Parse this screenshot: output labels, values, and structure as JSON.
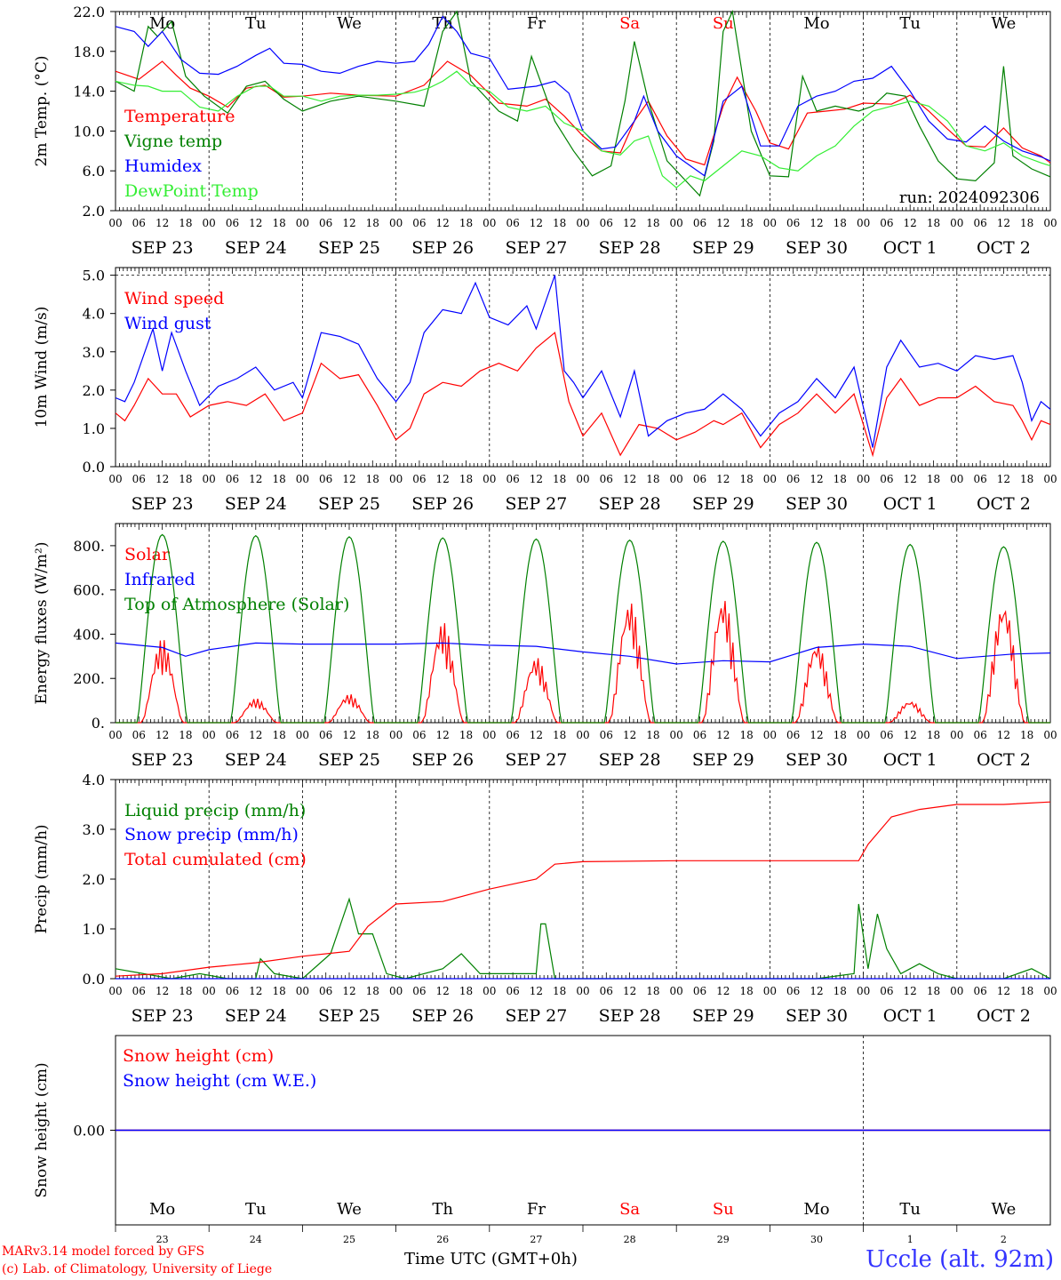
{
  "run_label": "run: 2024092306",
  "footer": {
    "credit_line1": "MARv3.14 model forced by GFS",
    "credit_line2": "(c) Lab. of Climatology, University of Liege",
    "time_label": "Time UTC (GMT+0h)",
    "station": "Uccle (alt. 92m)"
  },
  "colors": {
    "red": "#ff0000",
    "dark_green": "#008000",
    "blue": "#0000ff",
    "light_green": "#33ee33",
    "purple": "#800080",
    "weekend_label": "#ff0000"
  },
  "weekday_labels": [
    "Mo",
    "Tu",
    "We",
    "Th",
    "Fr",
    "Sa",
    "Su",
    "Mo",
    "Tu",
    "We"
  ],
  "weekend_flags": [
    false,
    false,
    false,
    false,
    false,
    true,
    true,
    false,
    false,
    false
  ],
  "date_labels": [
    "SEP 23",
    "SEP 24",
    "SEP 25",
    "SEP 26",
    "SEP 27",
    "SEP 28",
    "SEP 29",
    "SEP 30",
    "OCT  1",
    "OCT  2"
  ],
  "day_numbers": [
    "23",
    "24",
    "25",
    "26",
    "27",
    "28",
    "29",
    "30",
    "1",
    "2"
  ],
  "hour_ticks": [
    "00",
    "06",
    "12",
    "18"
  ],
  "chart_data": [
    {
      "type": "line",
      "id": "temperature",
      "ylabel": "2m Temp. (°C)",
      "ylim": [
        2,
        22
      ],
      "yticks": [
        "2.0",
        "6.0",
        "10.0",
        "14.0",
        "18.0",
        "22.0"
      ],
      "ytick_values": [
        2,
        6,
        10,
        14,
        18,
        22
      ],
      "x_unit": "days since SEP 23 00 UTC",
      "xlim": [
        0,
        10
      ],
      "top_labels": "weekdays",
      "series": [
        {
          "name": "Temperature",
          "color": "#ff0000",
          "x": [
            0,
            0.25,
            0.5,
            0.65,
            0.8,
            1,
            1.2,
            1.4,
            1.6,
            1.8,
            2,
            2.3,
            2.6,
            3,
            3.3,
            3.55,
            3.8,
            4.1,
            4.4,
            4.6,
            4.8,
            5,
            5.2,
            5.4,
            5.55,
            5.7,
            5.9,
            6.1,
            6.3,
            6.5,
            6.65,
            6.85,
            7,
            7.2,
            7.4,
            7.6,
            7.8,
            8,
            8.3,
            8.5,
            8.7,
            8.9,
            9.1,
            9.3,
            9.5,
            9.7,
            9.9,
            10
          ],
          "y": [
            16,
            15.2,
            17,
            15.6,
            14.3,
            13.5,
            12.4,
            14.3,
            14.6,
            13.4,
            13.5,
            13.8,
            13.6,
            13.5,
            14.6,
            17,
            15.6,
            12.8,
            12.5,
            13.2,
            11.5,
            9.5,
            8,
            7.8,
            11,
            13,
            9.5,
            7.2,
            6.6,
            12.5,
            15.4,
            12,
            8.8,
            8.2,
            11.8,
            12,
            12.2,
            12.8,
            12.7,
            13.6,
            12,
            10.2,
            8.5,
            8.4,
            10.3,
            8.3,
            7.5,
            6.8
          ]
        },
        {
          "name": "Vigne temp",
          "color": "#008000",
          "x": [
            0,
            0.2,
            0.35,
            0.45,
            0.6,
            0.75,
            0.95,
            1.2,
            1.4,
            1.6,
            1.8,
            2,
            2.3,
            2.6,
            3,
            3.3,
            3.5,
            3.65,
            3.8,
            4.1,
            4.3,
            4.45,
            4.7,
            4.9,
            5.1,
            5.3,
            5.45,
            5.55,
            5.7,
            5.9,
            6.1,
            6.25,
            6.4,
            6.5,
            6.6,
            6.8,
            7,
            7.2,
            7.35,
            7.5,
            7.7,
            7.95,
            8.1,
            8.25,
            8.45,
            8.6,
            8.8,
            9,
            9.2,
            9.4,
            9.5,
            9.6,
            9.8,
            10
          ],
          "y": [
            15,
            14,
            20.5,
            19.5,
            21,
            15.5,
            13.5,
            11.8,
            14.5,
            15,
            13.2,
            12,
            13,
            13.5,
            13,
            12.5,
            20,
            22,
            15,
            12,
            11,
            17.5,
            11,
            8,
            5.5,
            6.5,
            13,
            19,
            13,
            7,
            5,
            3.5,
            9,
            20,
            22,
            10,
            5.5,
            5.4,
            15.5,
            12,
            12.5,
            12,
            12.5,
            13.8,
            13.5,
            10.5,
            7,
            5.2,
            5,
            6.8,
            16.5,
            7.5,
            6.2,
            5.4
          ]
        },
        {
          "name": "Humidex",
          "color": "#0000ff",
          "x": [
            0,
            0.2,
            0.35,
            0.5,
            0.7,
            0.9,
            1.1,
            1.3,
            1.5,
            1.65,
            1.8,
            2,
            2.2,
            2.4,
            2.6,
            2.8,
            3,
            3.2,
            3.35,
            3.5,
            3.65,
            3.8,
            4,
            4.2,
            4.5,
            4.7,
            4.85,
            5,
            5.2,
            5.35,
            5.55,
            5.65,
            5.8,
            6,
            6.15,
            6.3,
            6.5,
            6.7,
            6.9,
            7.1,
            7.3,
            7.5,
            7.7,
            7.9,
            8.1,
            8.3,
            8.5,
            8.7,
            8.9,
            9.1,
            9.3,
            9.5,
            9.7,
            9.9,
            10
          ],
          "y": [
            20.5,
            20,
            18.5,
            20,
            17.2,
            15.8,
            15.7,
            16.5,
            17.6,
            18.3,
            16.8,
            16.7,
            16,
            15.8,
            16.5,
            17,
            16.8,
            17,
            18.7,
            21.5,
            20,
            17.8,
            17.3,
            14.2,
            14.5,
            15,
            13.8,
            10,
            8.2,
            8.4,
            11,
            13.5,
            10,
            7.5,
            6.5,
            5.5,
            13,
            14.5,
            8.5,
            8.5,
            12.5,
            13.5,
            14,
            15,
            15.3,
            16.5,
            14,
            11,
            9.2,
            8.9,
            10.5,
            9,
            8,
            7.4,
            7
          ]
        },
        {
          "name": "DewPoint Temp",
          "color": "#33ee33",
          "x": [
            0,
            0.2,
            0.35,
            0.5,
            0.7,
            0.9,
            1.1,
            1.3,
            1.5,
            1.65,
            1.8,
            2,
            2.2,
            2.4,
            2.6,
            2.8,
            3,
            3.2,
            3.35,
            3.5,
            3.65,
            3.8,
            4,
            4.2,
            4.4,
            4.6,
            4.8,
            5,
            5.2,
            5.4,
            5.55,
            5.7,
            5.85,
            6,
            6.15,
            6.3,
            6.5,
            6.7,
            6.9,
            7.1,
            7.3,
            7.5,
            7.7,
            7.9,
            8.1,
            8.3,
            8.5,
            8.7,
            8.9,
            9.1,
            9.3,
            9.5,
            9.7,
            9.9,
            10
          ],
          "y": [
            15,
            14.6,
            14.5,
            14,
            14,
            12.4,
            12,
            13.5,
            14.5,
            14.5,
            13.5,
            13.5,
            13,
            13.5,
            13.6,
            13.6,
            13.7,
            13.9,
            14.3,
            15,
            16,
            14.6,
            14,
            12.4,
            12,
            12.5,
            10.8,
            10,
            8,
            7.6,
            9,
            9.5,
            5.5,
            4.3,
            5.5,
            5,
            6.5,
            8,
            7.5,
            6.3,
            6,
            7.5,
            8.5,
            10.5,
            12,
            12.5,
            13,
            12.5,
            11,
            8.5,
            8,
            8.8,
            7.5,
            6.8,
            6.5
          ]
        }
      ]
    },
    {
      "type": "line",
      "id": "wind",
      "ylabel": "10m Wind (m/s)",
      "ylim": [
        0,
        5.2
      ],
      "yticks": [
        "0.0",
        "1.0",
        "2.0",
        "3.0",
        "4.0",
        "5.0"
      ],
      "ytick_values": [
        0,
        1,
        2,
        3,
        4,
        5
      ],
      "reference_line": 5,
      "xlim": [
        0,
        10
      ],
      "series": [
        {
          "name": "Wind speed",
          "color": "#ff0000",
          "x": [
            0,
            0.1,
            0.2,
            0.35,
            0.5,
            0.65,
            0.8,
            1,
            1.2,
            1.4,
            1.6,
            1.8,
            2,
            2.2,
            2.4,
            2.6,
            2.8,
            3,
            3.15,
            3.3,
            3.5,
            3.7,
            3.9,
            4.1,
            4.3,
            4.5,
            4.7,
            4.85,
            4.95,
            5,
            5.2,
            5.4,
            5.6,
            5.8,
            6,
            6.2,
            6.4,
            6.5,
            6.7,
            6.9,
            7.1,
            7.3,
            7.5,
            7.7,
            7.9,
            8.1,
            8.25,
            8.4,
            8.6,
            8.8,
            9,
            9.2,
            9.4,
            9.6,
            9.7,
            9.8,
            9.9,
            10
          ],
          "y": [
            1.4,
            1.2,
            1.6,
            2.3,
            1.9,
            1.9,
            1.3,
            1.6,
            1.7,
            1.6,
            1.9,
            1.2,
            1.4,
            2.7,
            2.3,
            2.4,
            1.6,
            0.7,
            1,
            1.9,
            2.2,
            2.1,
            2.5,
            2.7,
            2.5,
            3.1,
            3.5,
            1.7,
            1.1,
            0.8,
            1.4,
            0.3,
            1.1,
            1,
            0.7,
            0.9,
            1.2,
            1.1,
            1.4,
            0.5,
            1.1,
            1.4,
            1.9,
            1.4,
            1.9,
            0.3,
            1.8,
            2.3,
            1.6,
            1.8,
            1.8,
            2.1,
            1.7,
            1.6,
            1.2,
            0.7,
            1.2,
            1.1
          ]
        },
        {
          "name": "Wind gust",
          "color": "#0000ff",
          "x": [
            0,
            0.1,
            0.2,
            0.4,
            0.5,
            0.6,
            0.75,
            0.9,
            1.1,
            1.3,
            1.5,
            1.7,
            1.9,
            2,
            2.2,
            2.4,
            2.6,
            2.8,
            3,
            3.15,
            3.3,
            3.5,
            3.7,
            3.85,
            4,
            4.2,
            4.4,
            4.5,
            4.7,
            4.8,
            4.9,
            5,
            5.2,
            5.4,
            5.55,
            5.7,
            5.9,
            6.1,
            6.3,
            6.5,
            6.7,
            6.9,
            7.1,
            7.3,
            7.5,
            7.7,
            7.9,
            8.1,
            8.25,
            8.4,
            8.6,
            8.8,
            9,
            9.2,
            9.4,
            9.6,
            9.7,
            9.8,
            9.9,
            10
          ],
          "y": [
            1.8,
            1.7,
            2.2,
            3.6,
            2.5,
            3.5,
            2.5,
            1.6,
            2.1,
            2.3,
            2.6,
            2,
            2.2,
            1.8,
            3.5,
            3.4,
            3.2,
            2.3,
            1.7,
            2.2,
            3.5,
            4.1,
            4,
            4.8,
            3.9,
            3.7,
            4.2,
            3.6,
            5,
            2.5,
            2.2,
            1.8,
            2.5,
            1.3,
            2.5,
            0.8,
            1.2,
            1.4,
            1.5,
            1.9,
            1.5,
            0.8,
            1.4,
            1.7,
            2.3,
            1.8,
            2.6,
            0.5,
            2.6,
            3.3,
            2.6,
            2.7,
            2.5,
            2.9,
            2.8,
            2.9,
            2.2,
            1.2,
            1.7,
            1.5
          ]
        }
      ]
    },
    {
      "type": "line",
      "id": "energy",
      "ylabel": "Energy fluxes (W/m²)",
      "ylim": [
        0,
        900
      ],
      "yticks": [
        "0.",
        "200.",
        "400.",
        "600.",
        "800."
      ],
      "ytick_values": [
        0,
        200,
        400,
        600,
        800
      ],
      "xlim": [
        0,
        10
      ],
      "series": [
        {
          "name": "Solar",
          "color": "#ff0000",
          "peaks": [
            380,
            110,
            130,
            460,
            300,
            560,
            580,
            370,
            100,
            560
          ]
        },
        {
          "name": "Infrared",
          "color": "#0000ff",
          "x": [
            0,
            0.5,
            0.75,
            1,
            1.5,
            2,
            2.5,
            3,
            3.5,
            4,
            4.5,
            5,
            5.5,
            6,
            6.5,
            7,
            7.5,
            8,
            8.5,
            9,
            9.3,
            9.6,
            10
          ],
          "y": [
            360,
            340,
            300,
            330,
            360,
            355,
            355,
            355,
            360,
            350,
            345,
            320,
            300,
            265,
            280,
            275,
            340,
            355,
            345,
            290,
            300,
            310,
            315
          ]
        },
        {
          "name": "Top of Atmosphere (Solar)",
          "color": "#008000",
          "peaks": [
            850,
            845,
            840,
            835,
            830,
            825,
            820,
            815,
            805,
            795
          ]
        }
      ]
    },
    {
      "type": "line",
      "id": "precip",
      "ylabel": "Precip (mm/h)",
      "ylim": [
        0,
        4
      ],
      "yticks": [
        "0.0",
        "1.0",
        "2.0",
        "3.0",
        "4.0"
      ],
      "ytick_values": [
        0,
        1,
        2,
        3,
        4
      ],
      "xlim": [
        0,
        10
      ],
      "series": [
        {
          "name": "Liquid precip (mm/h)",
          "color": "#008000",
          "x": [
            0,
            0.3,
            0.6,
            0.9,
            1.2,
            1.5,
            1.55,
            1.7,
            2,
            2.3,
            2.5,
            2.6,
            2.75,
            2.9,
            3.1,
            3.5,
            3.7,
            3.9,
            4.2,
            4.5,
            4.55,
            4.6,
            4.7,
            5,
            5.5,
            6,
            6.5,
            7,
            7.5,
            7.9,
            7.95,
            8.05,
            8.15,
            8.25,
            8.4,
            8.6,
            8.8,
            9,
            9.5,
            9.8,
            10
          ],
          "y": [
            0.2,
            0.1,
            0,
            0.1,
            0,
            0,
            0.4,
            0.1,
            0,
            0.5,
            1.6,
            0.9,
            0.9,
            0.1,
            0,
            0.2,
            0.5,
            0.1,
            0.1,
            0.1,
            1.1,
            1.1,
            0,
            0,
            0,
            0,
            0,
            0,
            0,
            0.1,
            1.5,
            0.2,
            1.3,
            0.6,
            0.1,
            0.3,
            0.1,
            0,
            0,
            0.2,
            0
          ]
        },
        {
          "name": "Snow precip (mm/h)",
          "color": "#0000ff",
          "x": [
            0,
            10
          ],
          "y": [
            0,
            0
          ]
        },
        {
          "name": "Total cumulated (cm)",
          "color": "#ff0000",
          "x": [
            0,
            0.5,
            1,
            1.5,
            2,
            2.5,
            2.7,
            3,
            3.5,
            4,
            4.5,
            4.7,
            5,
            6,
            7,
            7.95,
            8.05,
            8.3,
            8.6,
            9,
            9.5,
            10
          ],
          "y": [
            0.05,
            0.1,
            0.23,
            0.32,
            0.45,
            0.55,
            1.05,
            1.5,
            1.55,
            1.8,
            2,
            2.3,
            2.35,
            2.37,
            2.37,
            2.37,
            2.7,
            3.25,
            3.4,
            3.5,
            3.5,
            3.55
          ]
        }
      ]
    },
    {
      "type": "line",
      "id": "snow",
      "ylabel": "Snow height (cm)",
      "ylim": [
        -1,
        1
      ],
      "yticks": [
        "0.00"
      ],
      "ytick_values": [
        0
      ],
      "xlim": [
        0,
        10
      ],
      "series": [
        {
          "name": "Snow height (cm)",
          "color": "#ff0000",
          "x": [
            0,
            10
          ],
          "y": [
            0,
            0
          ]
        },
        {
          "name": "Snow height (cm W.E.)",
          "color": "#0000ff",
          "x": [
            0,
            10
          ],
          "y": [
            0,
            0
          ]
        }
      ]
    }
  ]
}
